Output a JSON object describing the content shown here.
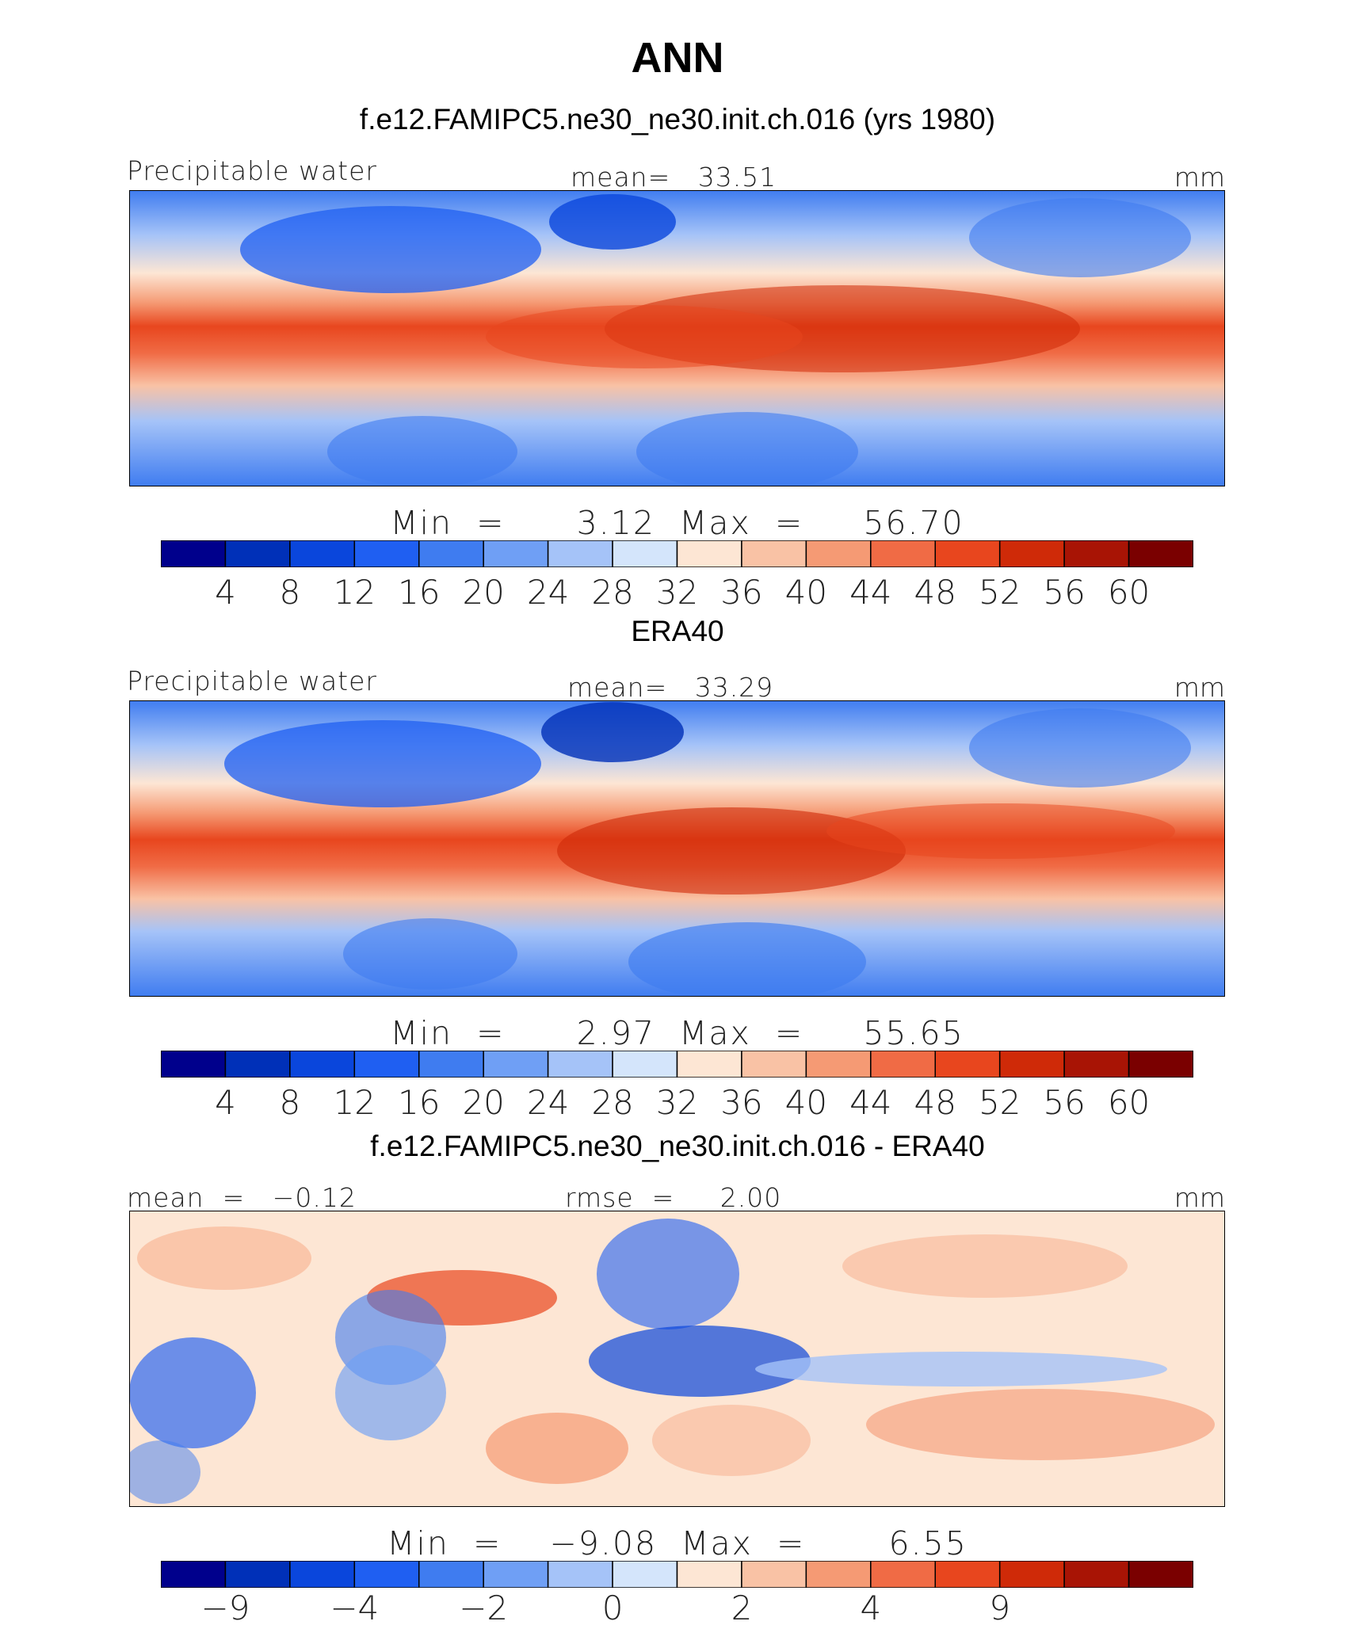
{
  "figure": {
    "title": "ANN"
  },
  "chart_data": [
    {
      "type": "heatmap",
      "title": "f.e12.FAMIPC5.ne30_ne30.init.ch.016 (yrs 1980)",
      "variable": "Precipitable water",
      "mean_text": "mean=   33.51",
      "units": "mm",
      "min_max_text": "Min  =      3.12  Max  =     56.70",
      "min": 3.12,
      "max": 56.7,
      "mean": 33.51,
      "colorbar_ticks": [
        "4",
        "8",
        "12",
        "16",
        "20",
        "24",
        "28",
        "32",
        "36",
        "40",
        "44",
        "48",
        "52",
        "56",
        "60"
      ],
      "colorbar_levels": [
        4,
        8,
        12,
        16,
        20,
        24,
        28,
        32,
        36,
        40,
        44,
        48,
        52,
        56,
        60
      ],
      "colors": [
        "#00008c",
        "#0030b8",
        "#0a46dc",
        "#1f5ff2",
        "#3f7cf0",
        "#6f9ff5",
        "#a5c3f8",
        "#d4e5fb",
        "#fde6d4",
        "#f9c2a5",
        "#f59a74",
        "#f06b45",
        "#e8461e",
        "#cf2a08",
        "#a81405",
        "#7a0000"
      ]
    },
    {
      "type": "heatmap",
      "title": "ERA40",
      "variable": "Precipitable water",
      "mean_text": "mean=   33.29",
      "units": "mm",
      "min_max_text": "Min  =      2.97  Max  =     55.65",
      "min": 2.97,
      "max": 55.65,
      "mean": 33.29,
      "colorbar_ticks": [
        "4",
        "8",
        "12",
        "16",
        "20",
        "24",
        "28",
        "32",
        "36",
        "40",
        "44",
        "48",
        "52",
        "56",
        "60"
      ],
      "colorbar_levels": [
        4,
        8,
        12,
        16,
        20,
        24,
        28,
        32,
        36,
        40,
        44,
        48,
        52,
        56,
        60
      ],
      "colors": [
        "#00008c",
        "#0030b8",
        "#0a46dc",
        "#1f5ff2",
        "#3f7cf0",
        "#6f9ff5",
        "#a5c3f8",
        "#d4e5fb",
        "#fde6d4",
        "#f9c2a5",
        "#f59a74",
        "#f06b45",
        "#e8461e",
        "#cf2a08",
        "#a81405",
        "#7a0000"
      ]
    },
    {
      "type": "heatmap",
      "title": "f.e12.FAMIPC5.ne30_ne30.init.ch.016 - ERA40",
      "mean_text": "mean  =   −0.12",
      "rmse_text": "rmse  =     2.00",
      "units": "mm",
      "min_max_text": "Min  =    −9.08  Max  =       6.55",
      "min": -9.08,
      "max": 6.55,
      "mean": -0.12,
      "rmse": 2.0,
      "colorbar_ticks": [
        "−9",
        "−4",
        "−2",
        "0",
        "2",
        "4",
        "9"
      ],
      "colorbar_tick_positions": [
        1,
        3,
        5,
        7,
        9,
        11,
        13
      ],
      "colors": [
        "#00008c",
        "#0030b8",
        "#0a46dc",
        "#1f5ff2",
        "#3f7cf0",
        "#6f9ff5",
        "#a5c3f8",
        "#d4e5fb",
        "#fde6d4",
        "#f9c2a5",
        "#f59a74",
        "#f06b45",
        "#e8461e",
        "#cf2a08",
        "#a81405",
        "#7a0000"
      ]
    }
  ]
}
